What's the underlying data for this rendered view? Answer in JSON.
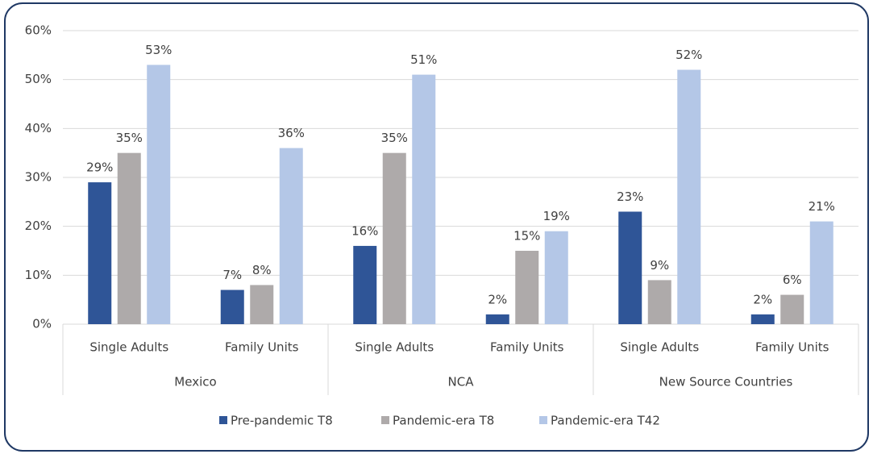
{
  "chart_data": {
    "type": "bar",
    "categories": [
      "Single Adults",
      "Family Units",
      "Single Adults",
      "Family Units",
      "Single Adults",
      "Family Units"
    ],
    "groups": [
      "Mexico",
      "NCA",
      "New Source Countries"
    ],
    "series": [
      {
        "name": "Pre-pandemic T8",
        "color": "#2f5597",
        "values": [
          29,
          7,
          16,
          2,
          23,
          2
        ],
        "value_labels": [
          "29%",
          "7%",
          "16%",
          "2%",
          "23%",
          "2%"
        ]
      },
      {
        "name": "Pandemic-era T8",
        "color": "#aeaaaa",
        "values": [
          35,
          8,
          35,
          15,
          9,
          6
        ],
        "value_labels": [
          "35%",
          "8%",
          "35%",
          "15%",
          "9%",
          "6%"
        ]
      },
      {
        "name": "Pandemic-era T42",
        "color": "#b4c7e7",
        "values": [
          53,
          36,
          51,
          19,
          52,
          21
        ],
        "value_labels": [
          "53%",
          "36%",
          "51%",
          "19%",
          "52%",
          "21%"
        ]
      }
    ],
    "ylim": [
      0,
      60
    ],
    "yticks": [
      {
        "value": 0,
        "label": "0%"
      },
      {
        "value": 10,
        "label": "10%"
      },
      {
        "value": 20,
        "label": "20%"
      },
      {
        "value": 30,
        "label": "30%"
      },
      {
        "value": 40,
        "label": "40%"
      },
      {
        "value": 50,
        "label": "50%"
      },
      {
        "value": 60,
        "label": "60%"
      }
    ],
    "grid": true,
    "legend": "bottom"
  }
}
